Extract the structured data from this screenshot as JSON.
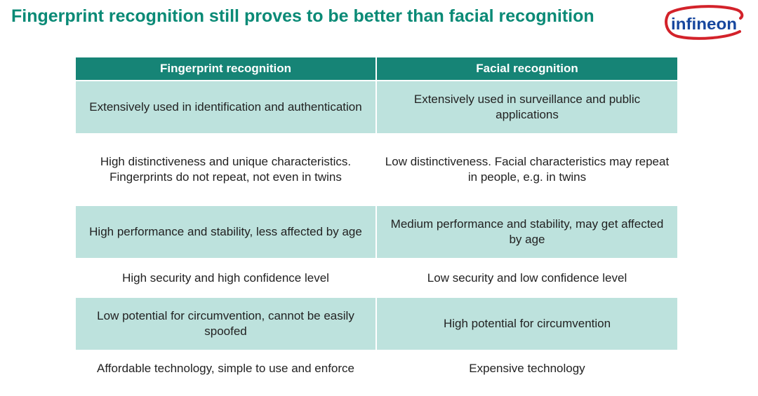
{
  "slide": {
    "title": "Fingerprint recognition still proves to be better than facial recognition",
    "logo_text": "infineon",
    "colors": {
      "title": "#0a8a76",
      "header": "#168476",
      "row_shade": "#bde2dd",
      "logo_red": "#d3222a",
      "logo_blue": "#17479e"
    }
  },
  "table": {
    "headers": [
      "Fingerprint recognition",
      "Facial recognition"
    ],
    "rows": [
      {
        "fingerprint": "Extensively used in identification and authentication",
        "facial": "Extensively used in surveillance and public applications"
      },
      {
        "fingerprint": "High distinctiveness and unique characteristics. Fingerprints do not repeat, not even in twins",
        "facial": "Low distinctiveness. Facial characteristics may repeat in people, e.g. in twins"
      },
      {
        "fingerprint": "High performance and stability, less affected by age",
        "facial": "Medium performance and stability, may get affected by age"
      },
      {
        "fingerprint": "High security and high confidence level",
        "facial": "Low security and low confidence level"
      },
      {
        "fingerprint": "Low potential for circumvention, cannot be easily spoofed",
        "facial": "High potential for circumvention"
      },
      {
        "fingerprint": "Affordable technology, simple to use and enforce",
        "facial": "Expensive technology"
      }
    ]
  }
}
